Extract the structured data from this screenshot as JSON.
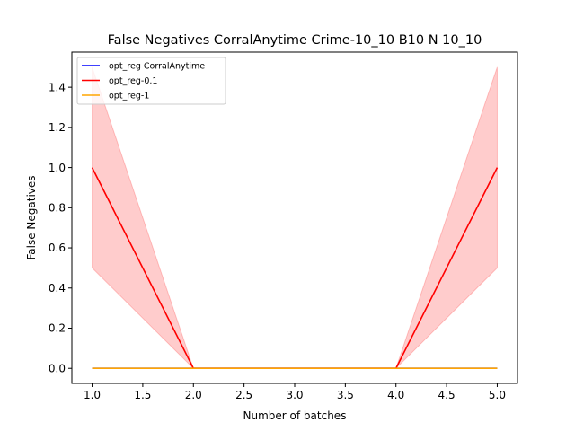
{
  "chart_data": {
    "type": "line",
    "title": "False Negatives CorralAnytime Crime-10_10 B10 N 10_10",
    "xlabel": "Number of batches",
    "ylabel": "False Negatives",
    "xlim": [
      0.8,
      5.2
    ],
    "ylim": [
      -0.075,
      1.575
    ],
    "xticks": [
      "1.0",
      "1.5",
      "2.0",
      "2.5",
      "3.0",
      "3.5",
      "4.0",
      "4.5",
      "5.0"
    ],
    "yticks": [
      "0.0",
      "0.2",
      "0.4",
      "0.6",
      "0.8",
      "1.0",
      "1.2",
      "1.4"
    ],
    "grid": false,
    "legend_position": "top-left",
    "x": [
      1,
      2,
      3,
      4,
      5
    ],
    "series": [
      {
        "name": "opt_reg CorralAnytime",
        "color": "#0000ff",
        "values": [
          0,
          0,
          0,
          0,
          0
        ],
        "band_lower": [
          0,
          0,
          0,
          0,
          0
        ],
        "band_upper": [
          0,
          0,
          0,
          0,
          0
        ],
        "band_color": "#0000ff"
      },
      {
        "name": "opt_reg-0.1",
        "color": "#ff0000",
        "values": [
          1.0,
          0,
          0,
          0,
          1.0
        ],
        "band_lower": [
          0.5,
          0,
          0,
          0,
          0.5
        ],
        "band_upper": [
          1.5,
          0,
          0,
          0,
          1.5
        ],
        "band_color": "#ff0000"
      },
      {
        "name": "opt_reg-1",
        "color": "#ffa500",
        "values": [
          0,
          0,
          0,
          0,
          0
        ],
        "band_lower": [
          0,
          0,
          0,
          0,
          0
        ],
        "band_upper": [
          0,
          0,
          0,
          0,
          0
        ],
        "band_color": "#ffa500"
      }
    ]
  }
}
